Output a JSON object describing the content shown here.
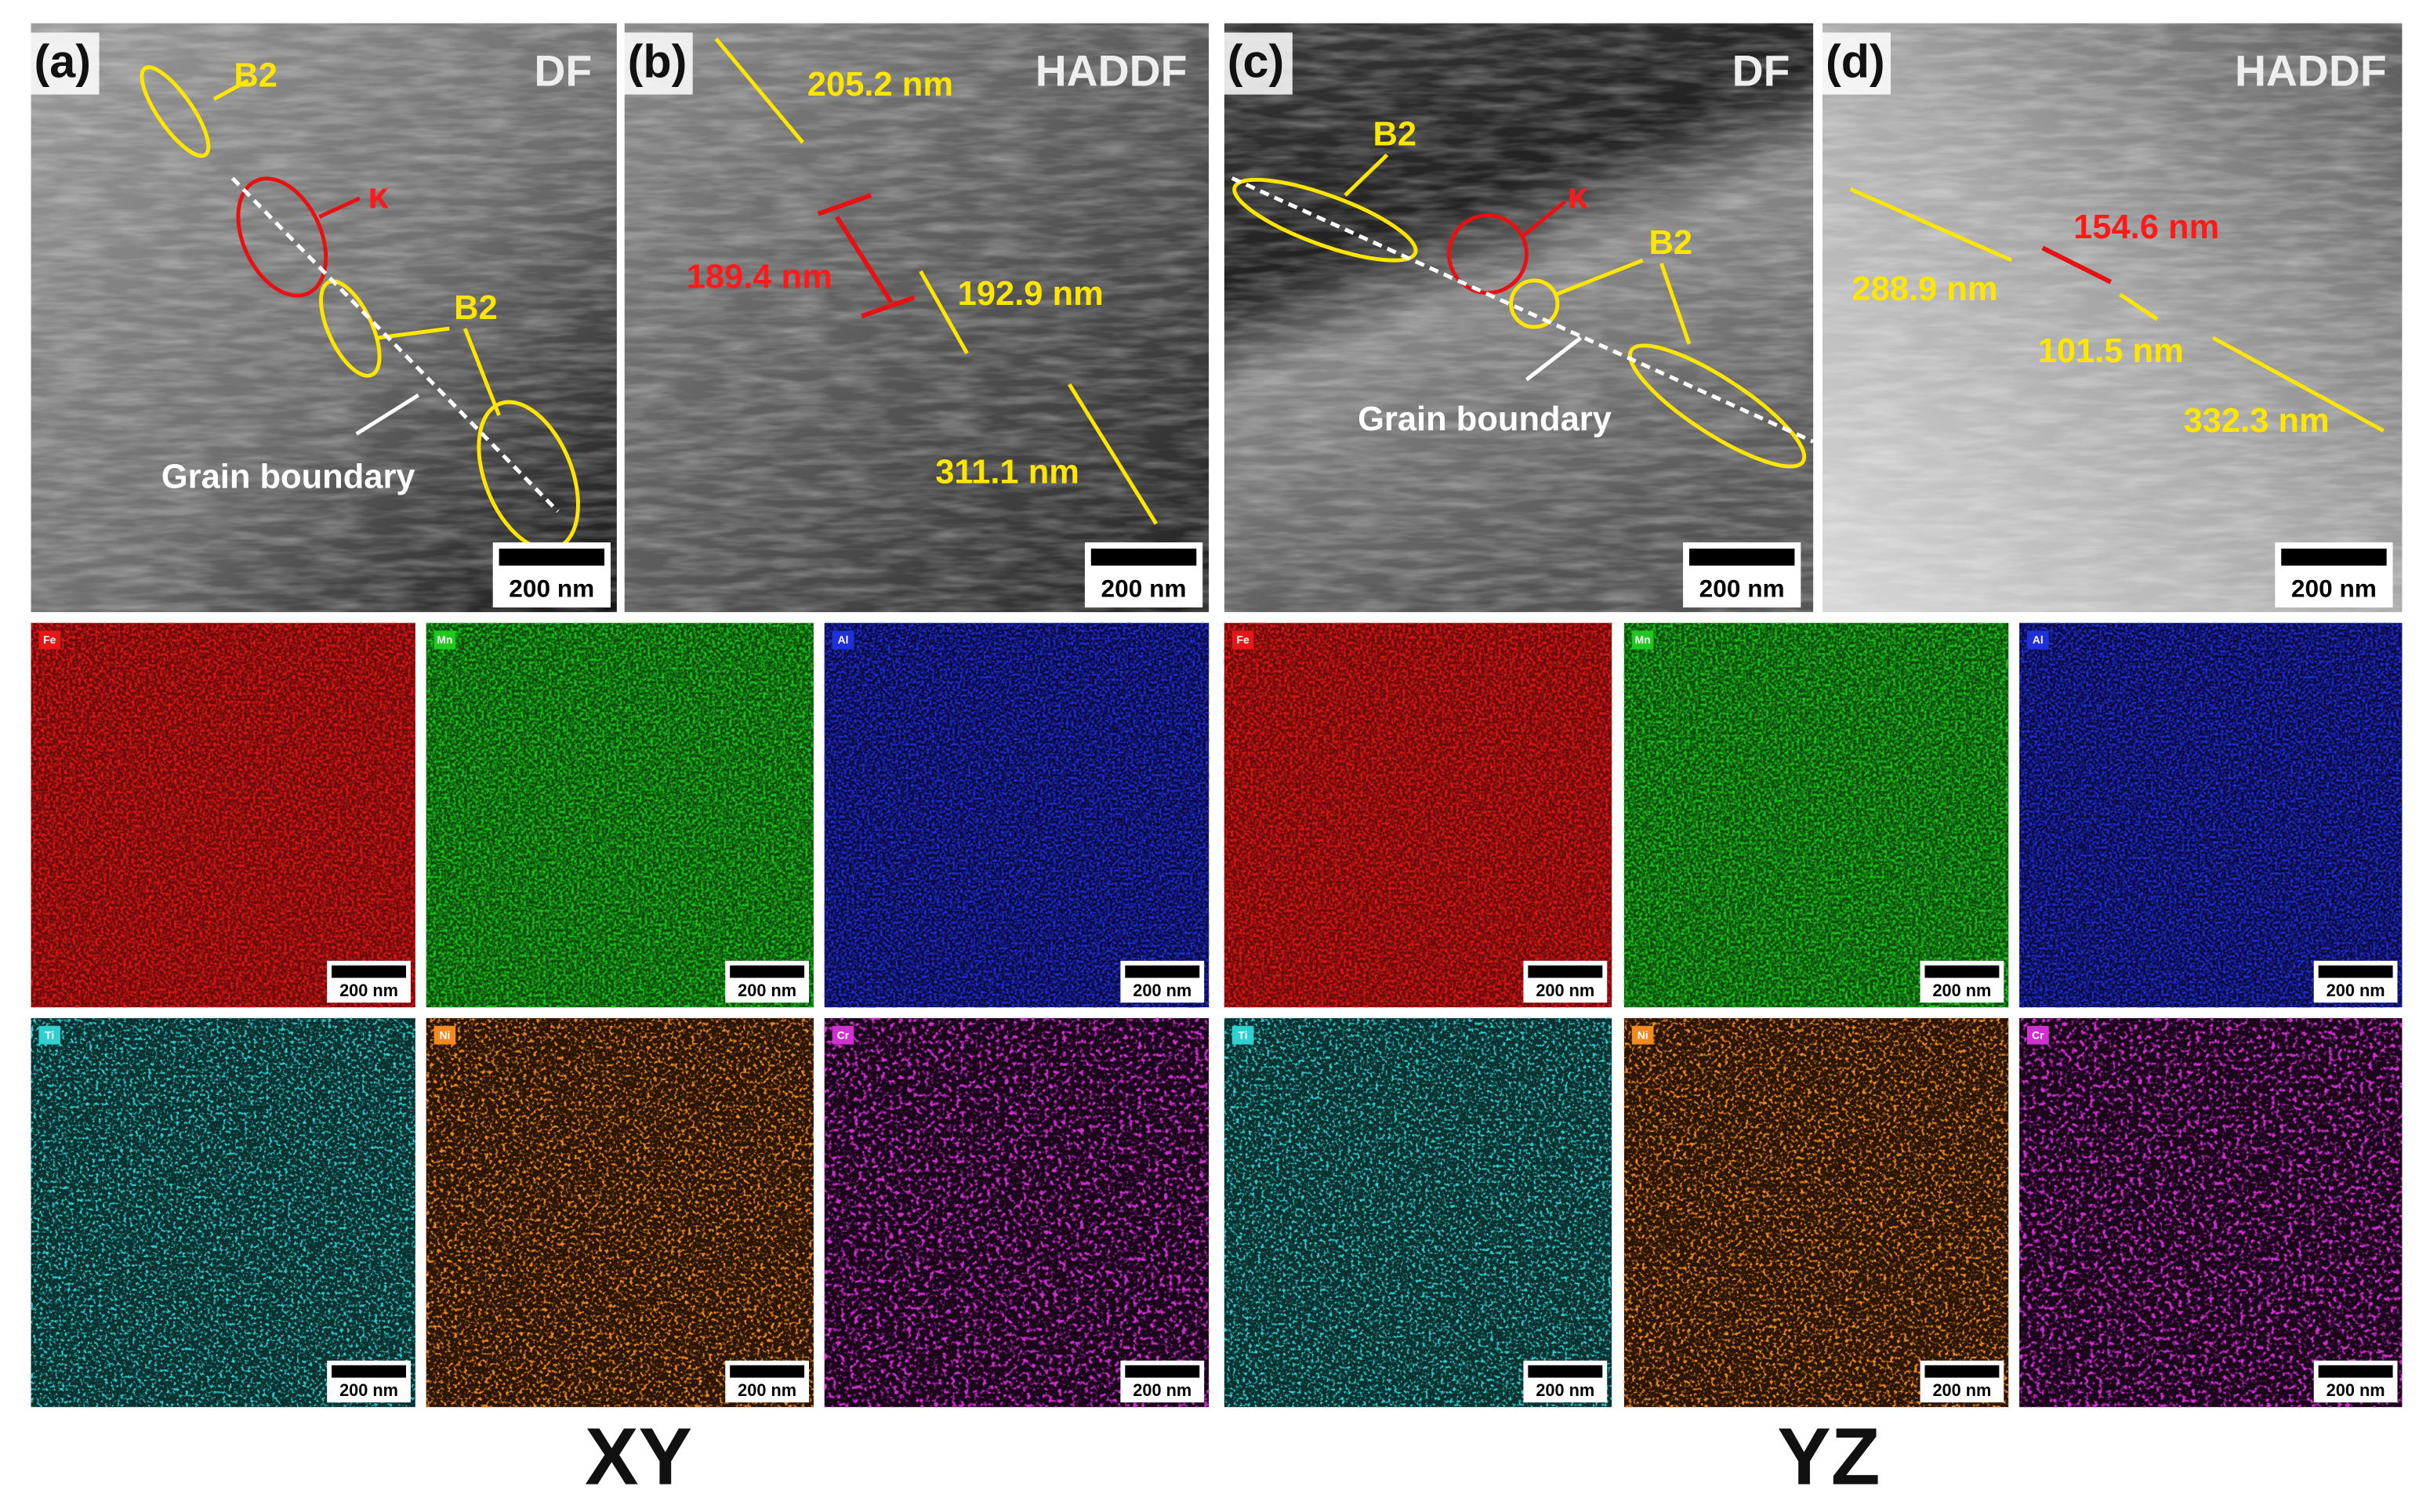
{
  "tem_panels": [
    {
      "label": "(a)",
      "mode": "DF",
      "scale_bar": "200 nm",
      "annotations": [
        "B2",
        "κ",
        "B2",
        "Grain boundary"
      ]
    },
    {
      "label": "(b)",
      "mode": "HADDF",
      "scale_bar": "200 nm",
      "annotations": [
        "205.2 nm",
        "189.4 nm",
        "192.9 nm",
        "311.1 nm"
      ]
    },
    {
      "label": "(c)",
      "mode": "DF",
      "scale_bar": "200 nm",
      "annotations": [
        "B2",
        "κ",
        "B2",
        "Grain boundary"
      ]
    },
    {
      "label": "(d)",
      "mode": "HADDF",
      "scale_bar": "200 nm",
      "annotations": [
        "154.6 nm",
        "288.9 nm",
        "101.5 nm",
        "332.3 nm"
      ]
    }
  ],
  "eds_maps": [
    {
      "orientation": "XY",
      "maps": [
        {
          "element": "Fe",
          "scale_bar": "200 nm"
        },
        {
          "element": "Mn",
          "scale_bar": "200 nm"
        },
        {
          "element": "Al",
          "scale_bar": "200 nm"
        },
        {
          "element": "Ti",
          "scale_bar": "200 nm"
        },
        {
          "element": "Ni",
          "scale_bar": "200 nm"
        },
        {
          "element": "Cr",
          "scale_bar": "200 nm"
        }
      ]
    },
    {
      "orientation": "YZ",
      "maps": [
        {
          "element": "Fe",
          "scale_bar": "200 nm"
        },
        {
          "element": "Mn",
          "scale_bar": "200 nm"
        },
        {
          "element": "Al",
          "scale_bar": "200 nm"
        },
        {
          "element": "Ti",
          "scale_bar": "200 nm"
        },
        {
          "element": "Ni",
          "scale_bar": "200 nm"
        },
        {
          "element": "Cr",
          "scale_bar": "200 nm"
        }
      ]
    }
  ]
}
